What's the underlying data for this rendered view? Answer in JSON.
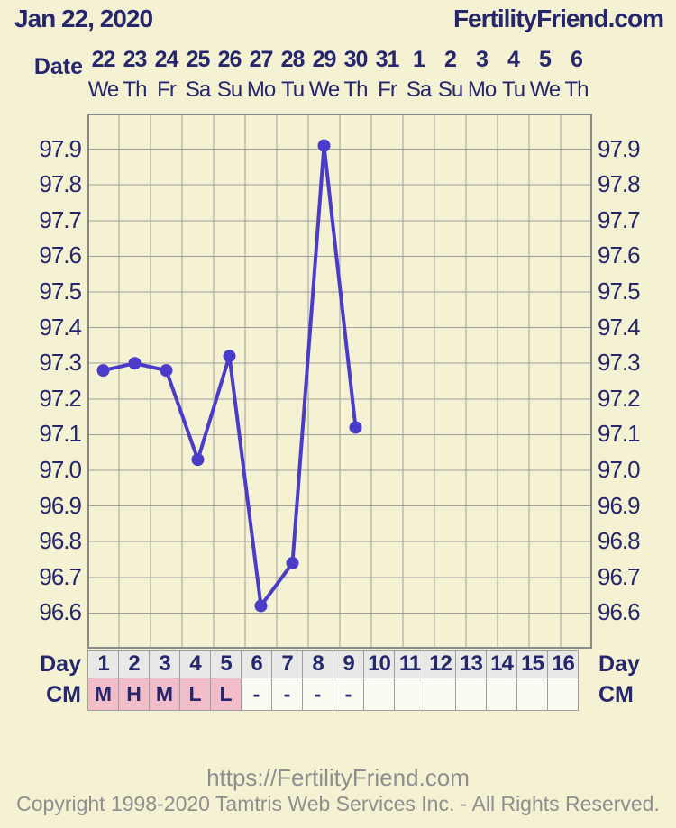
{
  "colors": {
    "background": "#f5f2d4",
    "navy": "#26266d",
    "grid": "#9e9e9e",
    "grid_border": "#8a8a8a",
    "line": "#4a3cc8",
    "day_cell_bg": "#e8e8e6",
    "cm_pink": "#f0bdc9",
    "cell_white": "#fbfaf2",
    "footer_gray": "#8e8e8e"
  },
  "header": {
    "date": "Jan 22, 2020",
    "brand": "FertilityFriend.com"
  },
  "date_axis": {
    "label": "Date",
    "dates": [
      "22",
      "23",
      "24",
      "25",
      "26",
      "27",
      "28",
      "29",
      "30",
      "31",
      "1",
      "2",
      "3",
      "4",
      "5",
      "6"
    ],
    "weekdays": [
      "We",
      "Th",
      "Fr",
      "Sa",
      "Su",
      "Mo",
      "Tu",
      "We",
      "Th",
      "Fr",
      "Sa",
      "Su",
      "Mo",
      "Tu",
      "We",
      "Th"
    ]
  },
  "chart_data": {
    "type": "line",
    "title": "",
    "xlabel": "Day",
    "x": [
      1,
      2,
      3,
      4,
      5,
      6,
      7,
      8,
      9
    ],
    "values": [
      97.28,
      97.3,
      97.28,
      97.03,
      97.32,
      96.62,
      96.74,
      97.91,
      97.12
    ],
    "x_slots": 16,
    "ylim": [
      96.5,
      98.0
    ],
    "y_step": 0.1,
    "yticks": [
      "97.9",
      "97.8",
      "97.7",
      "97.6",
      "97.5",
      "97.4",
      "97.3",
      "97.2",
      "97.1",
      "97.0",
      "96.9",
      "96.8",
      "96.7",
      "96.6"
    ],
    "grid": true,
    "legend_position": "none"
  },
  "day_row": {
    "label_left": "Day",
    "label_right": "Day",
    "days": [
      "1",
      "2",
      "3",
      "4",
      "5",
      "6",
      "7",
      "8",
      "9",
      "10",
      "11",
      "12",
      "13",
      "14",
      "15",
      "16"
    ]
  },
  "cm_row": {
    "label_left": "CM",
    "label_right": "CM",
    "cells": [
      {
        "value": "M",
        "pink": true
      },
      {
        "value": "H",
        "pink": true
      },
      {
        "value": "M",
        "pink": true
      },
      {
        "value": "L",
        "pink": true
      },
      {
        "value": "L",
        "pink": true
      },
      {
        "value": "-",
        "pink": false
      },
      {
        "value": "-",
        "pink": false
      },
      {
        "value": "-",
        "pink": false
      },
      {
        "value": "-",
        "pink": false
      },
      {
        "value": "",
        "pink": false
      },
      {
        "value": "",
        "pink": false
      },
      {
        "value": "",
        "pink": false
      },
      {
        "value": "",
        "pink": false
      },
      {
        "value": "",
        "pink": false
      },
      {
        "value": "",
        "pink": false
      },
      {
        "value": "",
        "pink": false
      }
    ]
  },
  "footer": {
    "url": "https://FertilityFriend.com",
    "copyright": "Copyright 1998-2020 Tamtris Web Services Inc. - All Rights Reserved."
  }
}
